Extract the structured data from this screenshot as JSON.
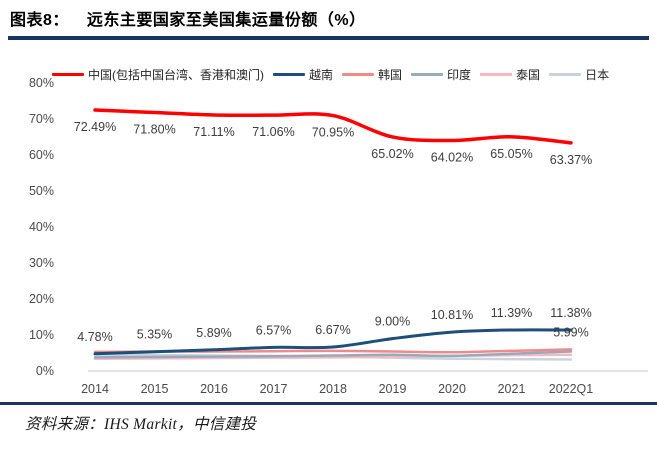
{
  "header": {
    "label": "图表8：",
    "title": "远东主要国家至美国集运量份额（%）"
  },
  "source": {
    "text": "资料来源：IHS Markit，中信建投"
  },
  "colors": {
    "rule": "#17375E",
    "axis_text": "#4a4a4a",
    "data_label_text": "#3d3d3d",
    "baseline": "#d9d9d9",
    "legend_text": "#262626"
  },
  "chart_data": {
    "type": "line",
    "title": "远东主要国家至美国集运量份额（%）",
    "xlabel": "",
    "ylabel": "",
    "ylim": [
      0,
      80
    ],
    "grid": false,
    "legend_position": "top",
    "categories": [
      "2014",
      "2015",
      "2016",
      "2017",
      "2018",
      "2019",
      "2020",
      "2021",
      "2022Q1"
    ],
    "yticks": [
      "0%",
      "10%",
      "20%",
      "30%",
      "40%",
      "50%",
      "60%",
      "70%",
      "80%"
    ],
    "series": [
      {
        "name": "中国(包括中国台湾、香港和澳门)",
        "color": "#FF0000",
        "width": 3.5,
        "label_side": "below",
        "values": [
          72.49,
          71.8,
          71.11,
          71.06,
          70.95,
          65.02,
          64.02,
          65.05,
          63.37
        ],
        "labels": [
          "72.49%",
          "71.80%",
          "71.11%",
          "71.06%",
          "70.95%",
          "65.02%",
          "64.02%",
          "65.05%",
          "63.37%"
        ]
      },
      {
        "name": "越南",
        "color": "#1F4E79",
        "width": 3,
        "label_side": "above",
        "values": [
          4.78,
          5.35,
          5.89,
          6.57,
          6.67,
          9.0,
          10.81,
          11.39,
          11.38
        ],
        "labels": [
          "4.78%",
          "5.35%",
          "5.89%",
          "6.57%",
          "6.67%",
          "9.00%",
          "10.81%",
          "11.39%",
          "11.38%"
        ]
      },
      {
        "name": "韩国",
        "color": "#F08A8A",
        "width": 2.5,
        "label_side": "above",
        "values": [
          5.3,
          5.4,
          5.4,
          5.5,
          5.6,
          5.4,
          5.2,
          5.6,
          5.99
        ],
        "labels": [
          null,
          null,
          null,
          null,
          null,
          null,
          null,
          null,
          "5.99%"
        ]
      },
      {
        "name": "印度",
        "color": "#95AABD",
        "width": 2.5,
        "label_side": "above",
        "values": [
          3.8,
          3.9,
          4.0,
          4.1,
          4.3,
          4.5,
          4.2,
          4.8,
          5.4
        ],
        "labels": []
      },
      {
        "name": "泰国",
        "color": "#F5B8BC",
        "width": 2.5,
        "label_side": "above",
        "values": [
          3.4,
          3.5,
          3.6,
          3.7,
          3.8,
          4.0,
          4.2,
          4.4,
          4.5
        ],
        "labels": []
      },
      {
        "name": "日本",
        "color": "#C9D3DD",
        "width": 2.5,
        "label_side": "above",
        "values": [
          4.6,
          4.4,
          4.3,
          4.2,
          4.0,
          3.7,
          3.4,
          3.3,
          3.2
        ],
        "labels": []
      }
    ]
  }
}
